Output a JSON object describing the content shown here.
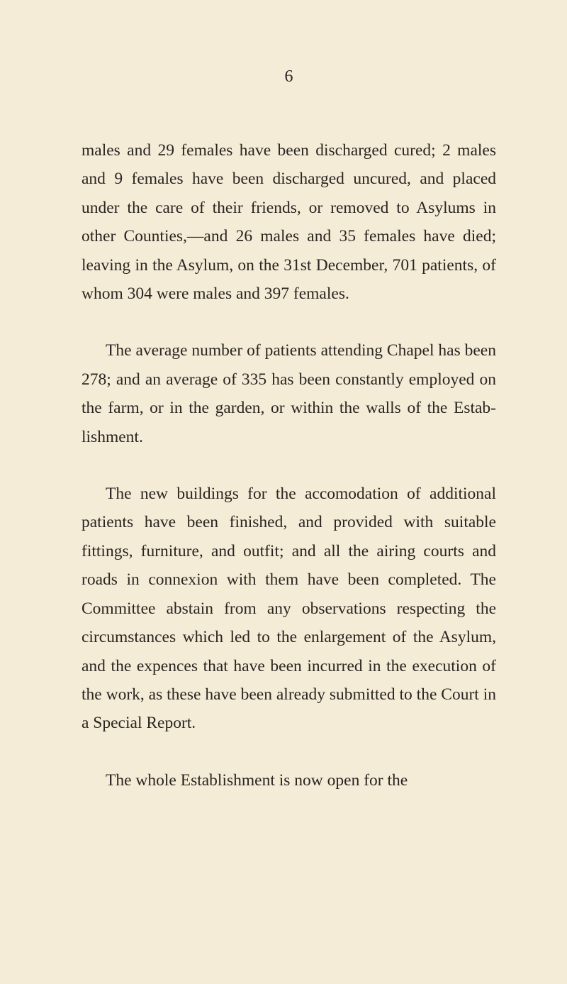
{
  "page": {
    "number": "6",
    "background_color": "#f5ecd8",
    "text_color": "#2a2520",
    "font_family": "Georgia, 'Times New Roman', serif",
    "body_fontsize": 23.5,
    "page_number_fontsize": 24,
    "line_height": 1.72,
    "paragraph_spacing": 40,
    "indent_width": 34
  },
  "paragraphs": {
    "p1": "males and 29 females have been discharged cured; 2 males and 9 females have been dis­charged uncured, and placed under the care of their friends, or removed to Asylums in other Counties,—and 26 males and 35 females have died; leaving in the Asylum, on the 31st December, 701 patients, of whom 304 were males and 397 females.",
    "p2": "The average number of patients attending Chapel has been 278; and an average of 335 has been constantly employed on the farm, or in the garden, or within the walls of the Estab­lishment.",
    "p3": "The new buildings for the accomodation of additional patients have been finished, and pro­vided with suitable fittings, furniture, and out­fit; and all the airing courts and roads in connexion with them have been completed. The Committee abstain from any observations respecting the circumstances which led to the enlargement of the Asylum, and the expences that have been incurred in the execution of the work, as these have been already submitted to the Court in a Special Report.",
    "p4": "The whole Establishment is now open for the"
  }
}
